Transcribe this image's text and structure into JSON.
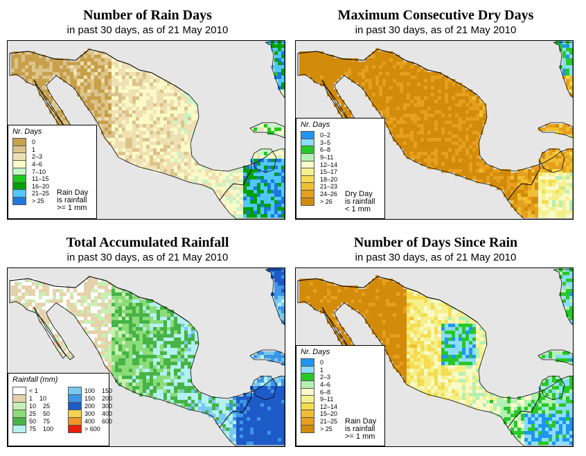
{
  "panels": [
    {
      "id": "rain-days",
      "title": "Number of Rain Days",
      "subtitle": "in past 30 days, as of  21 May 2010",
      "legend_title": "Nr. Days",
      "legend": [
        {
          "label": "0",
          "color": "#c8a04a"
        },
        {
          "label": "1",
          "color": "#dcc38c"
        },
        {
          "label": "2–3",
          "color": "#efe0b4"
        },
        {
          "label": "4–6",
          "color": "#fafac8"
        },
        {
          "label": "7–10",
          "color": "#c8f5c8"
        },
        {
          "label": "11–15",
          "color": "#1ec81e"
        },
        {
          "label": "16–20",
          "color": "#00a000"
        },
        {
          "label": "21–25",
          "color": "#50c8ff"
        },
        {
          "label": "> 25",
          "color": "#1e78dc"
        }
      ],
      "note": [
        "Rain Day",
        "is rainfall",
        ">= 1 mm"
      ]
    },
    {
      "id": "dry-days",
      "title": "Maximum Consecutive Dry Days",
      "subtitle": "in past 30 days, as of  21 May 2010",
      "legend_title": "Nr. Days",
      "legend": [
        {
          "label": "0–2",
          "color": "#1e96f0"
        },
        {
          "label": "3–5",
          "color": "#8cdcff"
        },
        {
          "label": "6–8",
          "color": "#28c828"
        },
        {
          "label": "9–11",
          "color": "#b4f0b4"
        },
        {
          "label": "12–14",
          "color": "#fafac8"
        },
        {
          "label": "15–17",
          "color": "#f5f08c"
        },
        {
          "label": "18–20",
          "color": "#f5dc50"
        },
        {
          "label": "21–23",
          "color": "#f0be32"
        },
        {
          "label": "24–26",
          "color": "#e6a01e"
        },
        {
          "label": "> 26",
          "color": "#d28c0a"
        }
      ],
      "note": [
        "Dry Day",
        "is rainfall",
        "< 1 mm"
      ]
    },
    {
      "id": "total-rainfall",
      "title": "Total Accumulated Rainfall",
      "subtitle": "in past 30 days, as of  21 May 2010",
      "legend_title": "Rainfall (mm)",
      "legend": [
        {
          "label": "< 1",
          "color": "#ffffff"
        },
        {
          "label": "1    10",
          "color": "#e6d2aa"
        },
        {
          "label": "10    25",
          "color": "#c8f0b4"
        },
        {
          "label": "25    50",
          "color": "#8cdc78"
        },
        {
          "label": "50    75",
          "color": "#46b446"
        },
        {
          "label": "75    100",
          "color": "#b4f0f0"
        },
        {
          "label": "100    150",
          "color": "#78c8f0"
        },
        {
          "label": "150    200",
          "color": "#3c96e6"
        },
        {
          "label": "200    300",
          "color": "#1e5ac8"
        },
        {
          "label": "300    400",
          "color": "#f5d250"
        },
        {
          "label": "400    600",
          "color": "#f09628"
        },
        {
          "label": "> 600",
          "color": "#e61e0a"
        }
      ],
      "note": []
    },
    {
      "id": "days-since-rain",
      "title": "Number of Days Since Rain",
      "subtitle": "in past 30 days, as of  21 May 2010",
      "legend_title": "Nr. Days",
      "legend": [
        {
          "label": "0",
          "color": "#1e96f0"
        },
        {
          "label": "1",
          "color": "#8cdcff"
        },
        {
          "label": "2–3",
          "color": "#28c828"
        },
        {
          "label": "4–6",
          "color": "#b4f0b4"
        },
        {
          "label": "6–8",
          "color": "#fafac8"
        },
        {
          "label": "9–11",
          "color": "#f5f08c"
        },
        {
          "label": "12–14",
          "color": "#f5dc50"
        },
        {
          "label": "15–20",
          "color": "#f0be32"
        },
        {
          "label": "21–25",
          "color": "#e6a01e"
        },
        {
          "label": "> 25",
          "color": "#d28c0a"
        }
      ],
      "note": [
        "Rain Day",
        "is rainfall",
        ">= 1 mm"
      ]
    }
  ]
}
